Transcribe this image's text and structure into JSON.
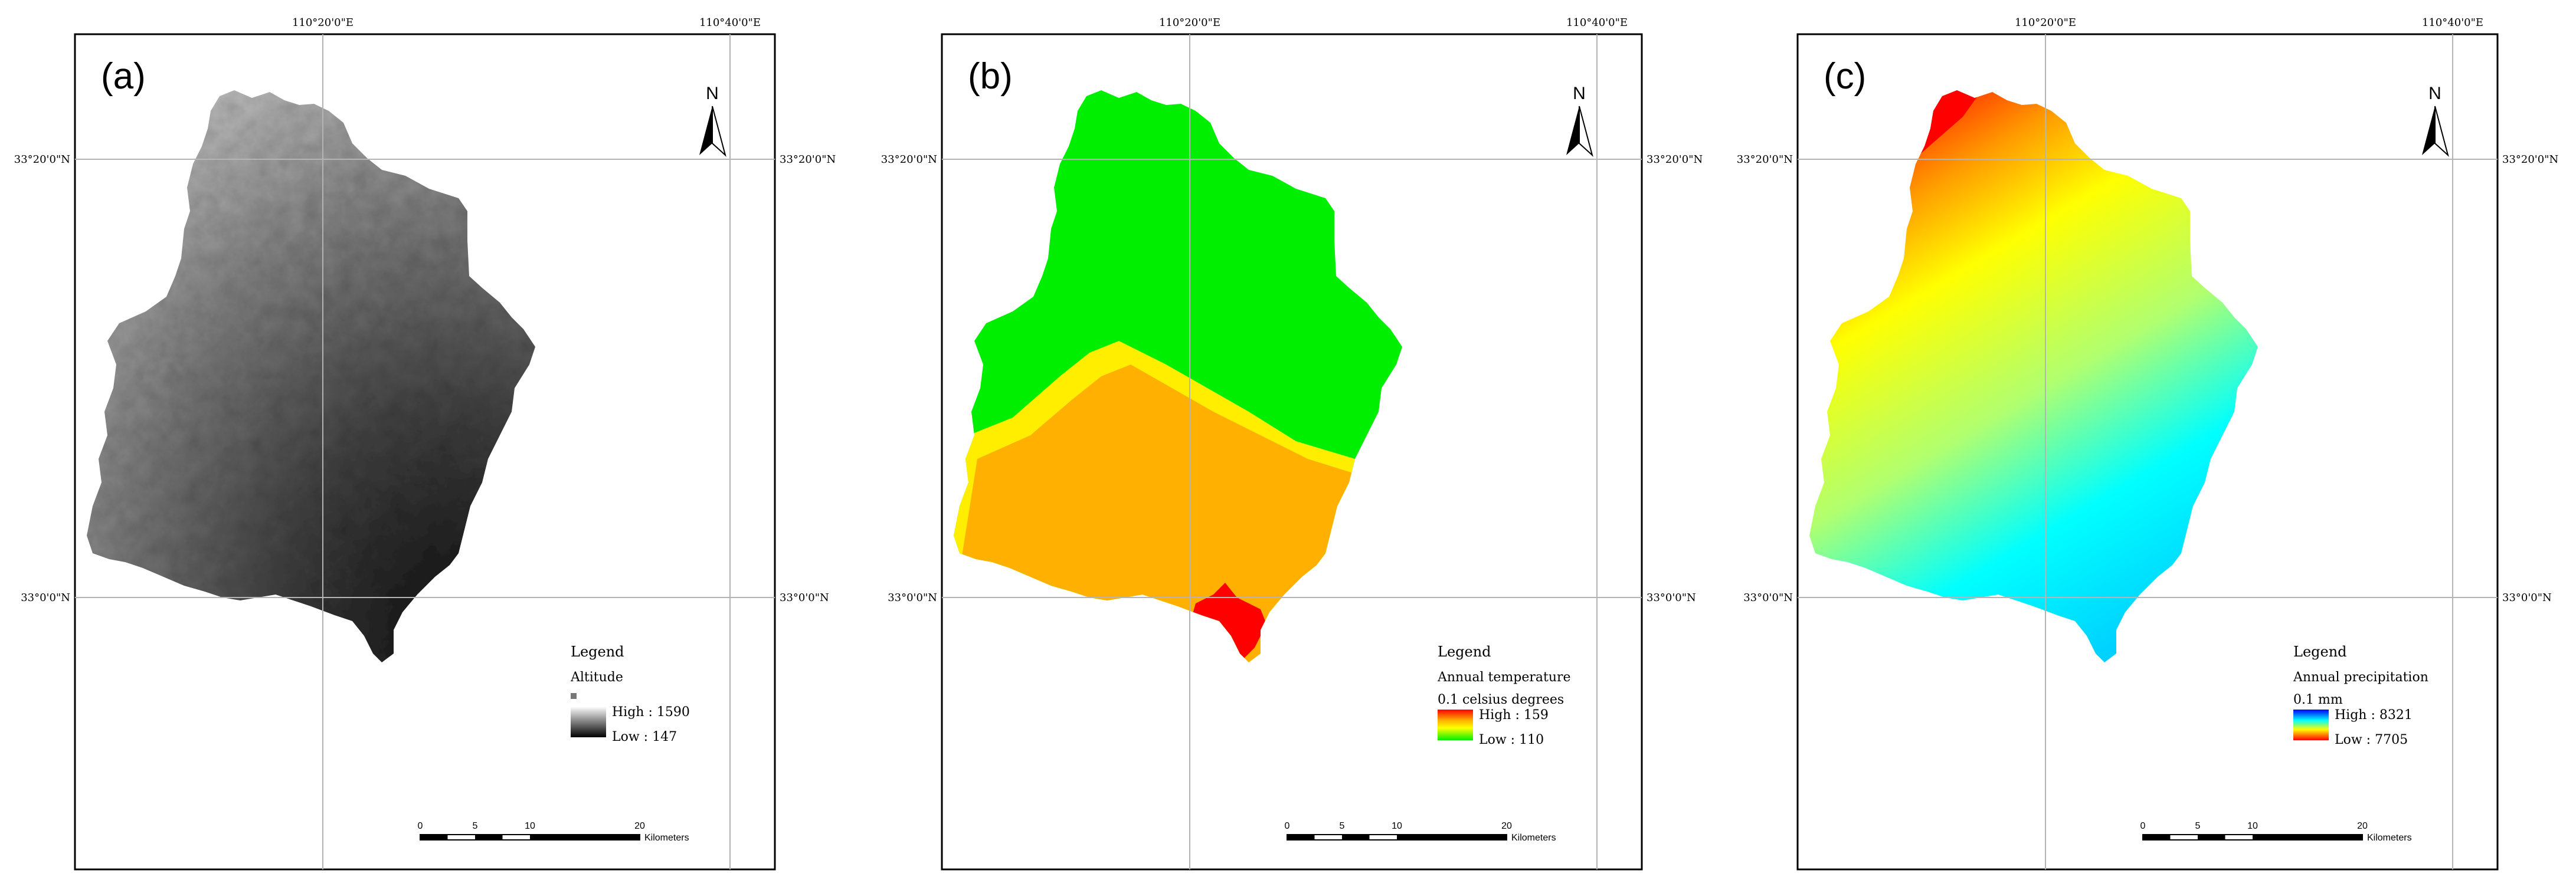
{
  "panels": [
    {
      "id": "a",
      "label": "(a)",
      "legend": {
        "heading": "Legend",
        "title": "Altitude",
        "unit": "",
        "high": "High : 1590",
        "low": "Low : 147",
        "ramp": [
          "#ffffff",
          "#000000"
        ]
      },
      "top_ticks": [
        "110°20'0\"E",
        "110°40'0\"E"
      ],
      "side_ticks": [
        "33°20'0\"N",
        "33°0'0\"N"
      ],
      "north": "N",
      "scale": {
        "labels": [
          "0",
          "5",
          "10",
          "20"
        ],
        "unit": "Kilometers"
      }
    },
    {
      "id": "b",
      "label": "(b)",
      "legend": {
        "heading": "Legend",
        "title": "Annual temperature",
        "unit": "0.1 celsius degrees",
        "high": "High : 159",
        "low": "Low : 110",
        "ramp": [
          "#ff0000",
          "#ffb000",
          "#ffff00",
          "#00ee00"
        ]
      },
      "top_ticks": [
        "110°20'0\"E",
        "110°40'0\"E"
      ],
      "side_ticks": [
        "33°20'0\"N",
        "33°0'0\"N"
      ],
      "north": "N",
      "scale": {
        "labels": [
          "0",
          "5",
          "10",
          "20"
        ],
        "unit": "Kilometers"
      }
    },
    {
      "id": "c",
      "label": "(c)",
      "legend": {
        "heading": "Legend",
        "title": "Annual precipitation",
        "unit": "0.1 mm",
        "high": "High : 8321",
        "low": "Low : 7705",
        "ramp": [
          "#0000ff",
          "#00ffff",
          "#ffff00",
          "#ff0000"
        ]
      },
      "top_ticks": [
        "110°20'0\"E",
        "110°40'0\"E"
      ],
      "side_ticks": [
        "33°20'0\"N",
        "33°0'0\"N"
      ],
      "north": "N",
      "scale": {
        "labels": [
          "0",
          "5",
          "10",
          "20"
        ],
        "unit": "Kilometers"
      }
    }
  ],
  "colors": {
    "frame": "#000000",
    "graticule": "#b4b4b4",
    "temperature_warm": "#ffb000",
    "temperature_cool": "#00ee00",
    "temperature_hot": "#ff0000",
    "precip_high": "#ff0000",
    "precip_low": "#0000ff"
  }
}
